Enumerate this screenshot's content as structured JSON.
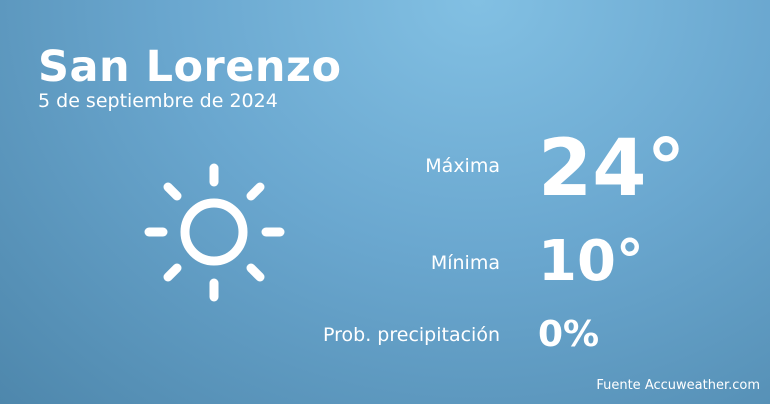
{
  "location": "San Lorenzo",
  "date": "5 de septiembre de 2024",
  "icon": "sun-icon",
  "max": {
    "label": "Máxima",
    "value": "24°"
  },
  "min": {
    "label": "Mínima",
    "value": "10°"
  },
  "precip": {
    "label": "Prob. precipitación",
    "value": "0%"
  },
  "source": "Fuente Accuweather.com",
  "colors": {
    "background_top": "#82c0e3",
    "background_bottom": "#4e87ac",
    "text": "#ffffff"
  }
}
